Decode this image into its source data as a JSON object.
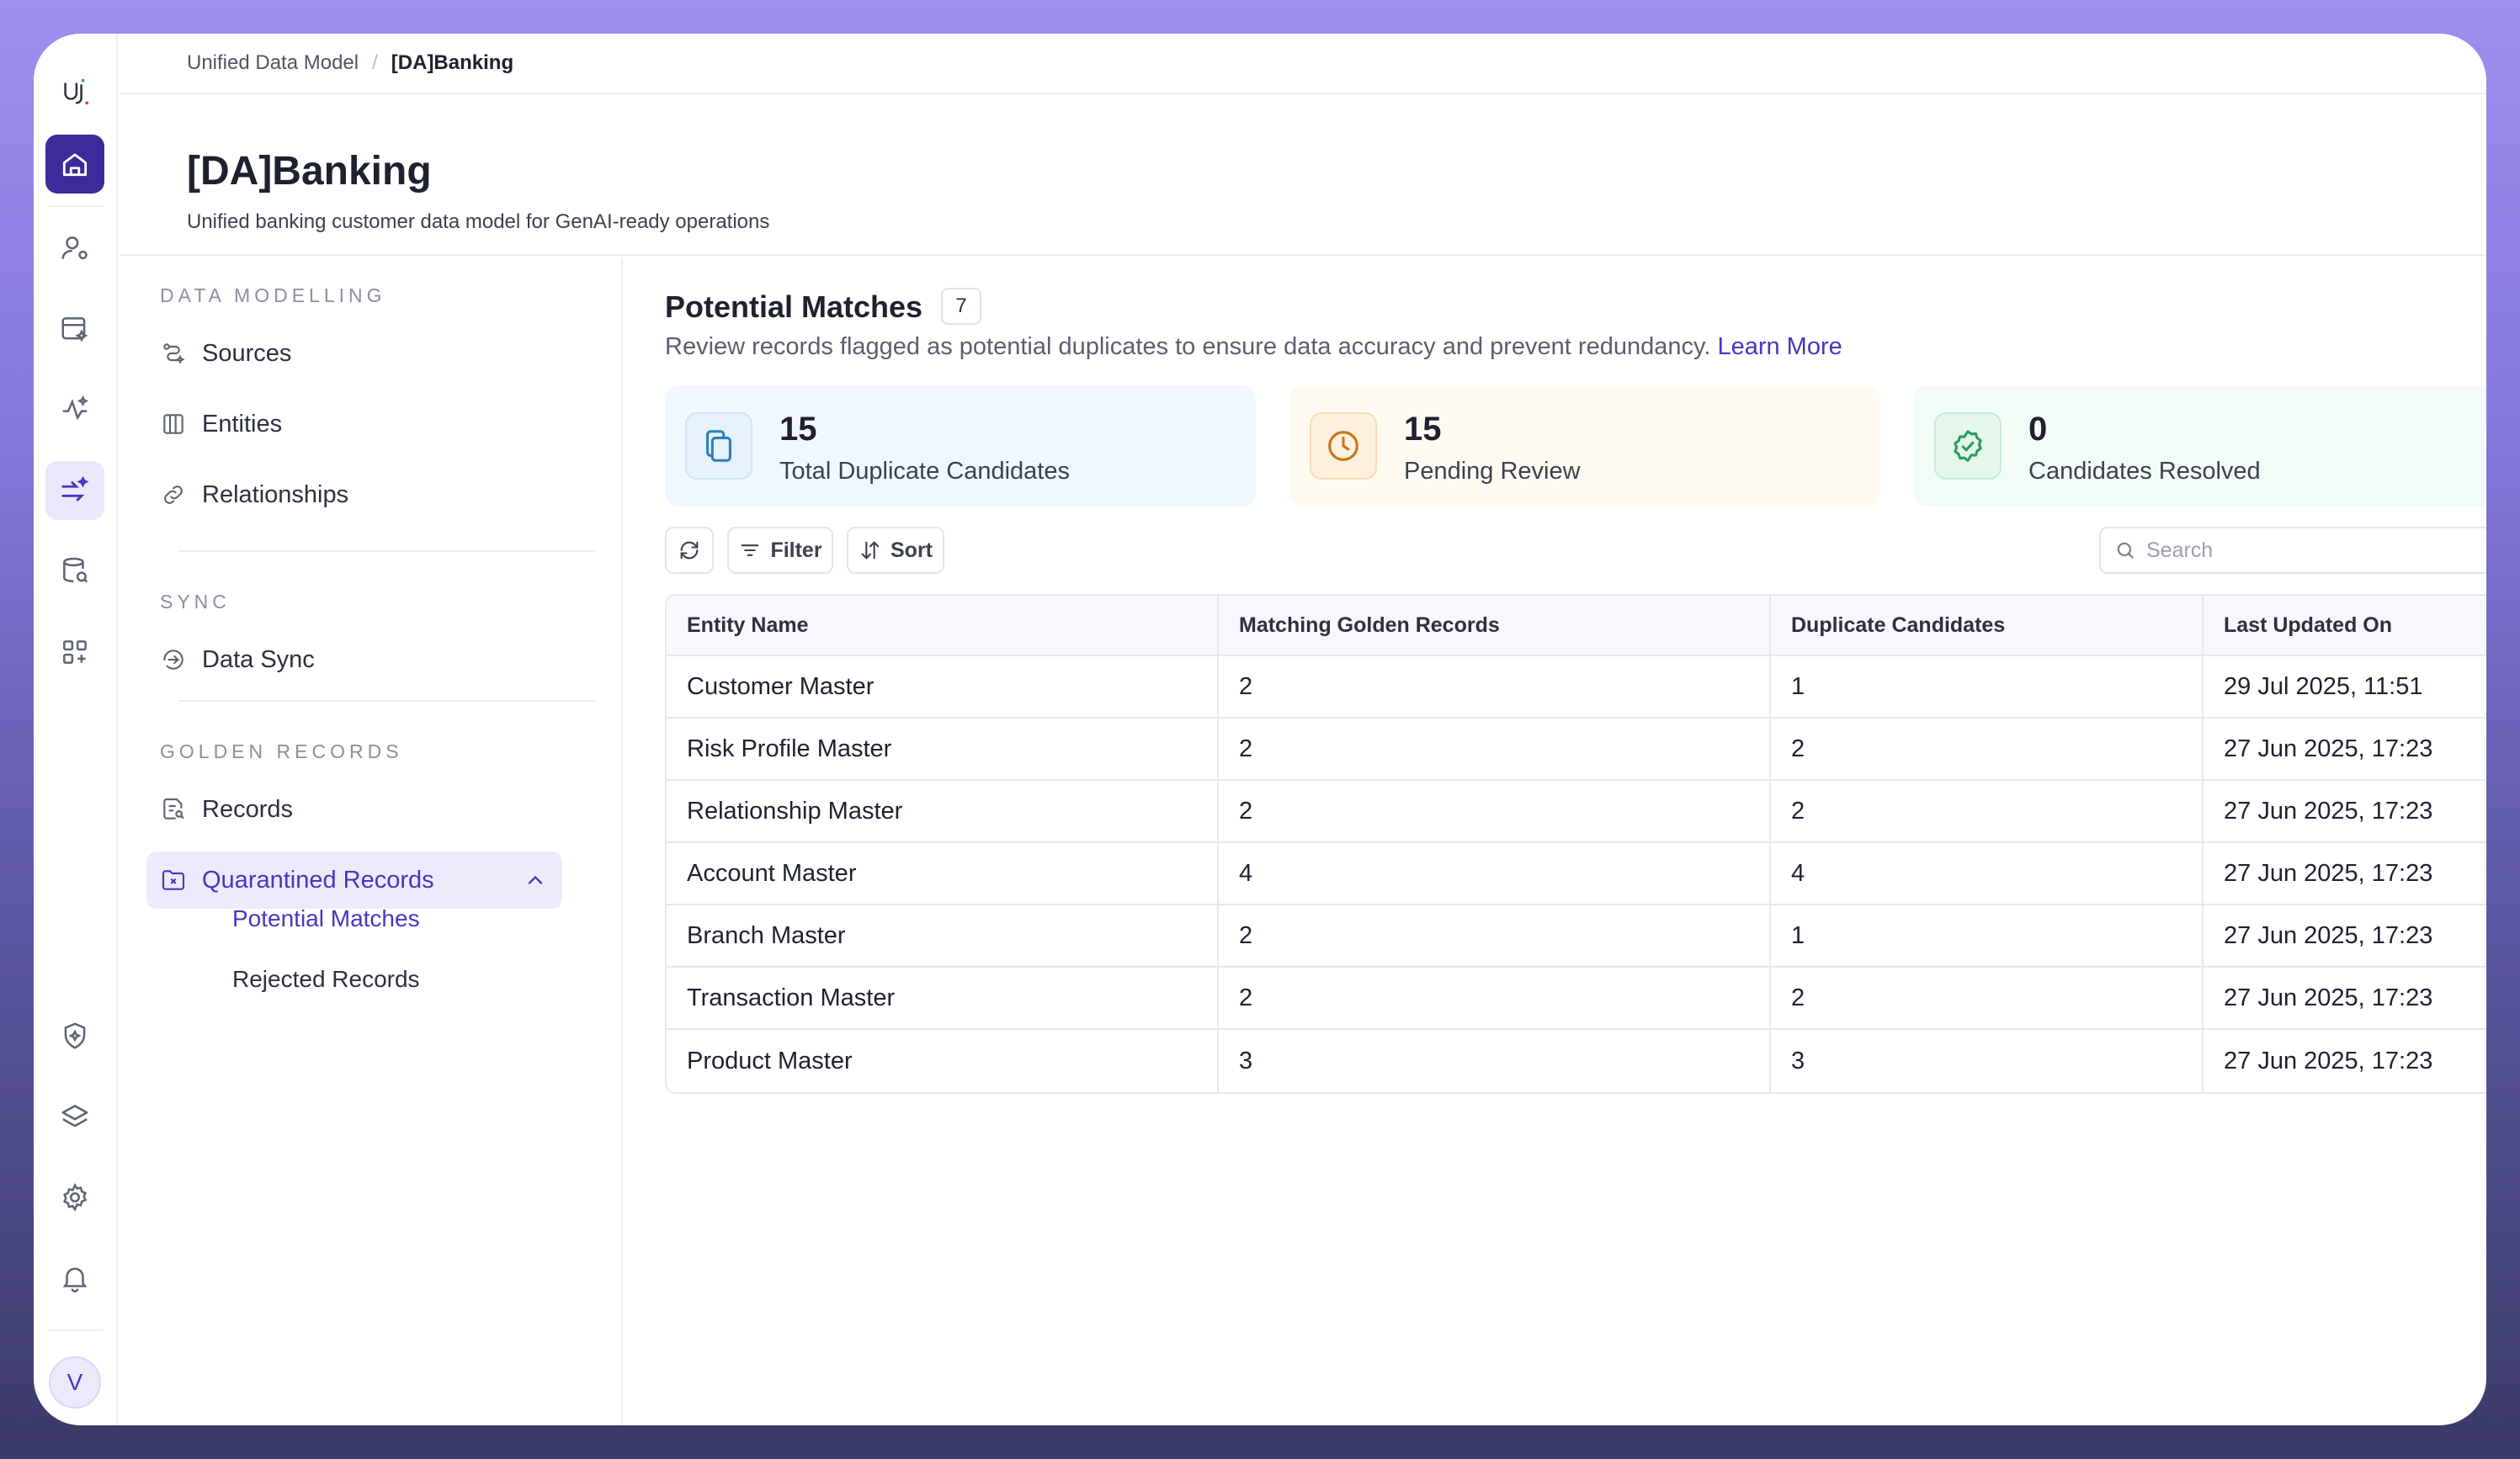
{
  "breadcrumb": {
    "parent": "Unified Data Model",
    "separator": "/",
    "current": "[DA]Banking"
  },
  "page": {
    "title": "[DA]Banking",
    "subtitle": "Unified banking customer data model for GenAI-ready operations"
  },
  "rail": {
    "icons": [
      "logo-icon",
      "home-icon",
      "user-settings-icon",
      "data-sparkle-icon",
      "analytics-sparkle-icon",
      "flow-sparkle-icon",
      "database-search-icon",
      "apps-add-icon",
      "shield-sparkle-icon",
      "layers-icon",
      "gear-icon",
      "bell-icon"
    ],
    "avatar_initial": "V"
  },
  "nav": {
    "sections": [
      {
        "title": "DATA MODELLING",
        "items": [
          {
            "label": "Sources",
            "icon": "route-icon"
          },
          {
            "label": "Entities",
            "icon": "columns-icon"
          },
          {
            "label": "Relationships",
            "icon": "link-icon"
          }
        ]
      },
      {
        "title": "SYNC",
        "items": [
          {
            "label": "Data Sync",
            "icon": "sync-arrow-icon"
          }
        ]
      },
      {
        "title": "GOLDEN RECORDS",
        "items": [
          {
            "label": "Records",
            "icon": "record-search-icon"
          },
          {
            "label": "Quarantined Records",
            "icon": "folder-x-icon"
          }
        ]
      }
    ],
    "sub_items": [
      "Potential Matches",
      "Rejected Records"
    ]
  },
  "main": {
    "title": "Potential Matches",
    "count": "7",
    "description": "Review records flagged as potential duplicates to ensure data accuracy and prevent redundancy.",
    "learn_more": "Learn More",
    "cards": [
      {
        "value": "15",
        "label": "Total Duplicate Candidates",
        "icon": "copy-icon",
        "color": "#2f7fb8",
        "bg": "#f0f7fd",
        "icon_bg": "#e6f1fb"
      },
      {
        "value": "15",
        "label": "Pending Review",
        "icon": "clock-icon",
        "color": "#c9741c",
        "bg": "#fffaf1",
        "icon_bg": "#fdf0dd"
      },
      {
        "value": "0",
        "label": "Candidates Resolved",
        "icon": "badge-check-icon",
        "color": "#2e9a62",
        "bg": "#f3fbf6",
        "icon_bg": "#e4f5ea"
      }
    ],
    "toolbar": {
      "filter_label": "Filter",
      "sort_label": "Sort",
      "search_placeholder": "Search"
    },
    "table": {
      "columns": [
        "Entity Name",
        "Matching Golden Records",
        "Duplicate Candidates",
        "Last Updated On"
      ],
      "rows": [
        [
          "Customer Master",
          "2",
          "1",
          "29 Jul 2025, 11:51"
        ],
        [
          "Risk Profile Master",
          "2",
          "2",
          "27 Jun 2025, 17:23"
        ],
        [
          "Relationship Master",
          "2",
          "2",
          "27 Jun 2025, 17:23"
        ],
        [
          "Account Master",
          "4",
          "4",
          "27 Jun 2025, 17:23"
        ],
        [
          "Branch Master",
          "2",
          "1",
          "27 Jun 2025, 17:23"
        ],
        [
          "Transaction Master",
          "2",
          "2",
          "27 Jun 2025, 17:23"
        ],
        [
          "Product Master",
          "3",
          "3",
          "27 Jun 2025, 17:23"
        ]
      ]
    }
  },
  "colors": {
    "accent": "#4b34c0",
    "home_button": "#3f2a9b"
  }
}
